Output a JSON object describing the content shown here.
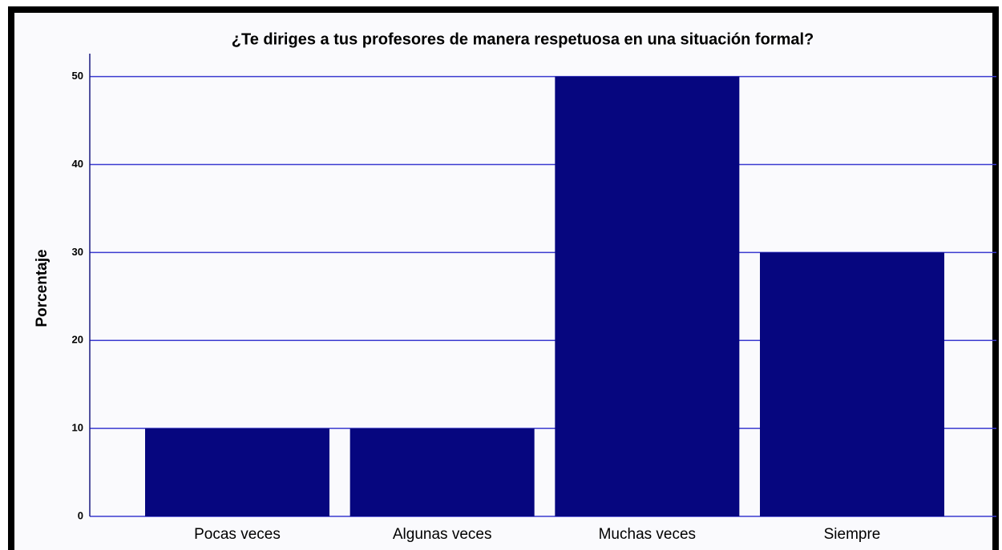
{
  "chart_data": {
    "type": "bar",
    "title": "¿Te diriges a tus profesores de manera respetuosa en una situación formal?",
    "ylabel": "Porcentaje",
    "categories": [
      "Pocas veces",
      "Algunas veces",
      "Muchas veces",
      "Siempre"
    ],
    "values": [
      10,
      10,
      50,
      30
    ],
    "color": "#06067f",
    "ylim": [
      0,
      52.6
    ],
    "yticks": [
      0,
      10,
      20,
      30,
      40,
      50
    ],
    "grid": true
  }
}
